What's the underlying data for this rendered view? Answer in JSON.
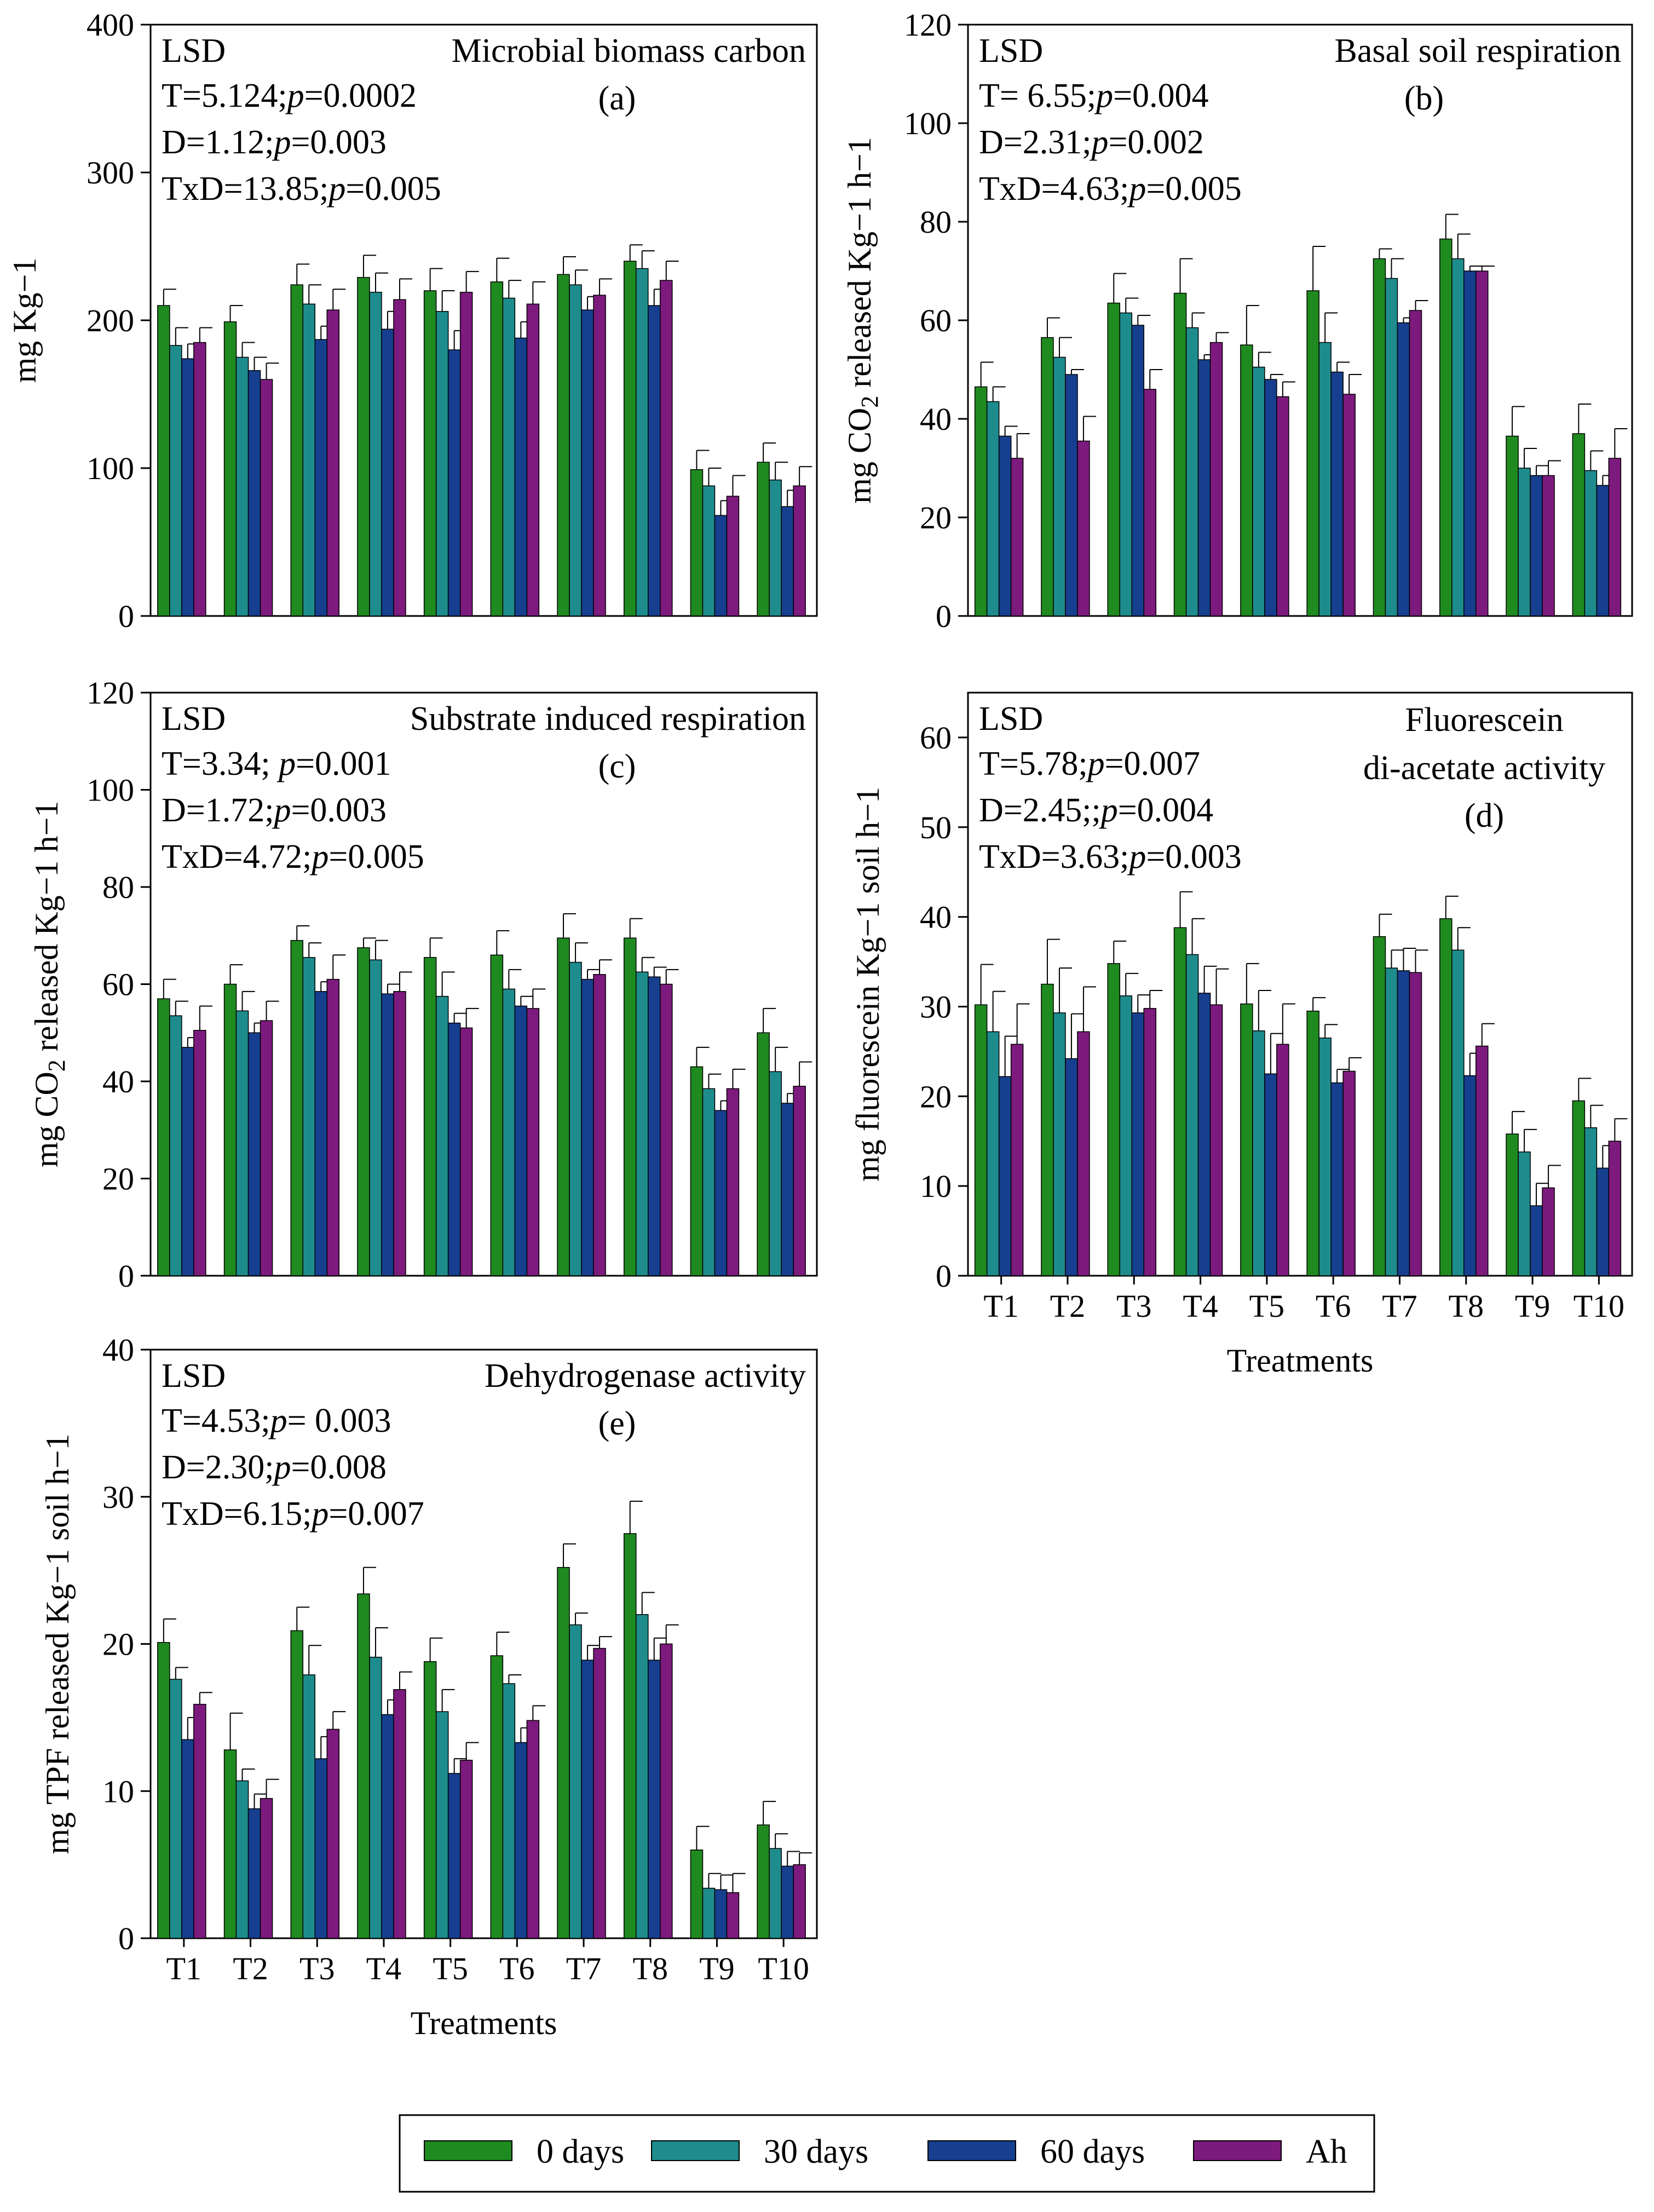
{
  "colors": {
    "0 days": "#1f8a1f",
    "30 days": "#1e8c8c",
    "60 days": "#163f8f",
    "Ah": "#7d1a7d"
  },
  "legend": {
    "items": [
      "0 days",
      "30 days",
      "60 days",
      "Ah"
    ]
  },
  "chart_data": [
    {
      "id": "a",
      "type": "bar",
      "panel_label": "(a)",
      "title": "Microbial biomass carbon",
      "ylabel": "mg Kg−1",
      "ylabel_parts": [
        "mg Kg−1"
      ],
      "xlabel": "",
      "ylim": [
        0,
        400
      ],
      "yticks": [
        0,
        100,
        200,
        300,
        400
      ],
      "show_xticklabels": false,
      "categories": [
        "T1",
        "T2",
        "T3",
        "T4",
        "T5",
        "T6",
        "T7",
        "T8",
        "T9",
        "T10"
      ],
      "stats": {
        "head": "LSD",
        "lines": [
          {
            "pre": "T=5.124;",
            "pval": "=0.0002"
          },
          {
            "pre": "D=1.12;",
            "pval": "=0.003"
          },
          {
            "pre": "TxD=13.85;",
            "pval": "=0.005"
          }
        ]
      },
      "series": [
        {
          "name": "0 days",
          "values": [
            210,
            199,
            224,
            229,
            220,
            226,
            231,
            240,
            99,
            104
          ],
          "errors": [
            11,
            11,
            14,
            15,
            15,
            16,
            12,
            11,
            13,
            13
          ]
        },
        {
          "name": "30 days",
          "values": [
            183,
            175,
            211,
            219,
            206,
            215,
            224,
            235,
            88,
            92
          ],
          "errors": [
            12,
            10,
            13,
            13,
            14,
            12,
            10,
            12,
            12,
            12
          ]
        },
        {
          "name": "60 days",
          "values": [
            174,
            166,
            187,
            194,
            180,
            188,
            207,
            210,
            68,
            74
          ],
          "errors": [
            10,
            9,
            9,
            12,
            13,
            11,
            9,
            11,
            10,
            11
          ]
        },
        {
          "name": "Ah",
          "values": [
            185,
            160,
            207,
            214,
            219,
            211,
            217,
            227,
            81,
            88
          ],
          "errors": [
            10,
            11,
            14,
            14,
            14,
            15,
            11,
            13,
            14,
            13
          ]
        }
      ]
    },
    {
      "id": "b",
      "type": "bar",
      "panel_label": "(b)",
      "title": "Basal soil respiration",
      "ylabel": "mg CO2 released Kg−1 h−1",
      "ylabel_parts": [
        "mg CO",
        "2",
        " released Kg−1 h−1"
      ],
      "xlabel": "",
      "ylim": [
        0,
        120
      ],
      "yticks": [
        0,
        20,
        40,
        60,
        80,
        100,
        120
      ],
      "show_xticklabels": false,
      "categories": [
        "T1",
        "T2",
        "T3",
        "T4",
        "T5",
        "T6",
        "T7",
        "T8",
        "T9",
        "T10"
      ],
      "stats": {
        "head": "LSD",
        "lines": [
          {
            "pre": "T= 6.55;",
            "pval": "=0.004"
          },
          {
            "pre": "D=2.31;",
            "pval": "=0.002"
          },
          {
            "pre": "TxD=4.63;",
            "pval": "=0.005"
          }
        ]
      },
      "series": [
        {
          "name": "0 days",
          "values": [
            46.5,
            56.5,
            63.5,
            65.5,
            55,
            66,
            72.5,
            76.5,
            36.5,
            37
          ],
          "errors": [
            5,
            4,
            6,
            7,
            8,
            9,
            2,
            5,
            6,
            6
          ]
        },
        {
          "name": "30 days",
          "values": [
            43.5,
            52.5,
            61.5,
            58.5,
            50.5,
            55.5,
            68.5,
            72.5,
            30,
            29.5
          ],
          "errors": [
            3,
            4,
            3,
            3,
            3,
            6,
            4,
            5,
            4,
            4
          ]
        },
        {
          "name": "60 days",
          "values": [
            36.5,
            49,
            59,
            52,
            48,
            49.5,
            59.5,
            70,
            28.5,
            26.5
          ],
          "errors": [
            2,
            1,
            2,
            1,
            1,
            2,
            1,
            1,
            2,
            2
          ]
        },
        {
          "name": "Ah",
          "values": [
            32,
            35.5,
            46,
            55.5,
            44.5,
            45,
            62,
            70,
            28.5,
            32
          ],
          "errors": [
            5,
            5,
            4,
            2,
            3,
            4,
            2,
            1,
            3,
            6
          ]
        }
      ]
    },
    {
      "id": "c",
      "type": "bar",
      "panel_label": "(c)",
      "title": "Substrate induced respiration",
      "ylabel": "mg CO2 released Kg−1 h−1",
      "ylabel_parts": [
        "mg CO",
        "2",
        " released Kg−1 h−1"
      ],
      "xlabel": "",
      "ylim": [
        0,
        120
      ],
      "yticks": [
        0,
        20,
        40,
        60,
        80,
        100,
        120
      ],
      "show_xticklabels": false,
      "categories": [
        "T1",
        "T2",
        "T3",
        "T4",
        "T5",
        "T6",
        "T7",
        "T8",
        "T9",
        "T10"
      ],
      "stats": {
        "head": "LSD",
        "lines": [
          {
            "pre": "T=3.34; ",
            "pval": "=0.001"
          },
          {
            "pre": "D=1.72;",
            "pval": "=0.003"
          },
          {
            "pre": "TxD=4.72;",
            "pval": "=0.005"
          }
        ]
      },
      "series": [
        {
          "name": "0 days",
          "values": [
            57,
            60,
            69,
            67.5,
            65.5,
            66,
            69.5,
            69.5,
            43,
            50
          ],
          "errors": [
            4,
            4,
            3,
            2,
            4,
            5,
            5,
            4,
            4,
            5
          ]
        },
        {
          "name": "30 days",
          "values": [
            53.5,
            54.5,
            65.5,
            65,
            57.5,
            59,
            64.5,
            62.5,
            38.5,
            42
          ],
          "errors": [
            3,
            4,
            3,
            4,
            5,
            4,
            4,
            3,
            3,
            5
          ]
        },
        {
          "name": "60 days",
          "values": [
            47,
            50,
            58.5,
            58,
            52,
            55.5,
            61,
            61.5,
            34,
            35.5
          ],
          "errors": [
            2,
            2,
            2,
            2,
            2,
            2,
            2,
            2,
            2,
            2
          ]
        },
        {
          "name": "Ah",
          "values": [
            50.5,
            52.5,
            61,
            58.5,
            51,
            55,
            62,
            60,
            38.5,
            39
          ],
          "errors": [
            5,
            4,
            5,
            4,
            4,
            4,
            3,
            3,
            4,
            5
          ]
        }
      ]
    },
    {
      "id": "d",
      "type": "bar",
      "panel_label": "(d)",
      "title": "Fluorescein di-acetate activity",
      "title_lines": [
        "Fluorescein",
        "di-acetate activity"
      ],
      "ylabel": "mg fluorescein Kg−1 soil h−1",
      "ylabel_parts": [
        "mg fluorescein Kg−1 soil h−1"
      ],
      "xlabel": "Treatments",
      "ylim": [
        0,
        65
      ],
      "yticks": [
        0,
        10,
        20,
        30,
        40,
        50,
        60
      ],
      "show_xticklabels": true,
      "categories": [
        "T1",
        "T2",
        "T3",
        "T4",
        "T5",
        "T6",
        "T7",
        "T8",
        "T9",
        "T10"
      ],
      "stats": {
        "head": "LSD",
        "lines": [
          {
            "pre": "T=5.78;",
            "pval": "=0.007"
          },
          {
            "pre": "D=2.45;;",
            "pval": "=0.004"
          },
          {
            "pre": "TxD=3.63;",
            "pval": "=0.003"
          }
        ]
      },
      "series": [
        {
          "name": "0 days",
          "values": [
            30.2,
            32.5,
            34.8,
            38.8,
            30.3,
            29.5,
            37.8,
            39.8,
            15.8,
            19.5
          ],
          "errors": [
            4.5,
            5,
            2.5,
            4,
            4.5,
            1.5,
            2.5,
            2.5,
            2.5,
            2.5
          ]
        },
        {
          "name": "30 days",
          "values": [
            27.2,
            29.3,
            31.2,
            35.8,
            27.3,
            26.5,
            34.3,
            36.3,
            13.8,
            16.5
          ],
          "errors": [
            4.5,
            5,
            2.5,
            4,
            4.5,
            1.5,
            2,
            2.5,
            2.5,
            2.5
          ]
        },
        {
          "name": "60 days",
          "values": [
            22.2,
            24.2,
            29.3,
            31.5,
            22.5,
            21.5,
            34,
            22.3,
            7.8,
            12
          ],
          "errors": [
            4.5,
            5,
            2,
            3,
            4.5,
            1.5,
            2.5,
            2.5,
            2.5,
            2.5
          ]
        },
        {
          "name": "Ah",
          "values": [
            25.8,
            27.2,
            29.8,
            30.2,
            25.8,
            22.8,
            33.8,
            25.6,
            9.8,
            15
          ],
          "errors": [
            4.5,
            5,
            2,
            4,
            4.5,
            1.5,
            2.5,
            2.5,
            2.5,
            2.5
          ]
        }
      ]
    },
    {
      "id": "e",
      "type": "bar",
      "panel_label": "(e)",
      "title": "Dehydrogenase activity",
      "ylabel": "mg TPF released Kg−1 soil h−1",
      "ylabel_parts": [
        "mg TPF released Kg−1 soil h−1"
      ],
      "xlabel": "Treatments",
      "ylim": [
        0,
        40
      ],
      "yticks": [
        0,
        10,
        20,
        30,
        40
      ],
      "show_xticklabels": true,
      "categories": [
        "T1",
        "T2",
        "T3",
        "T4",
        "T5",
        "T6",
        "T7",
        "T8",
        "T9",
        "T10"
      ],
      "stats": {
        "head": "LSD",
        "lines": [
          {
            "pre": "T=4.53;",
            "pval": "= 0.003"
          },
          {
            "pre": "D=2.30;",
            "pval": "=0.008"
          },
          {
            "pre": "TxD=6.15;",
            "pval": "=0.007"
          }
        ]
      },
      "series": [
        {
          "name": "0 days",
          "values": [
            20.1,
            12.8,
            20.9,
            23.4,
            18.8,
            19.2,
            25.2,
            27.5,
            6,
            7.7
          ],
          "errors": [
            1.6,
            2.5,
            1.6,
            1.8,
            1.6,
            1.6,
            1.6,
            2.2,
            1.6,
            1.6
          ]
        },
        {
          "name": "30 days",
          "values": [
            17.6,
            10.7,
            17.9,
            19.1,
            15.4,
            17.3,
            21.3,
            22,
            3.4,
            6.1
          ],
          "errors": [
            0.8,
            0.8,
            2,
            2,
            1.5,
            0.6,
            0.8,
            1.5,
            1,
            1
          ]
        },
        {
          "name": "60 days",
          "values": [
            13.5,
            8.8,
            12.2,
            15.2,
            11.2,
            13.3,
            18.9,
            18.9,
            3.3,
            4.9
          ],
          "errors": [
            1.5,
            1,
            1.5,
            1,
            1,
            1,
            1,
            1.5,
            1,
            1
          ]
        },
        {
          "name": "Ah",
          "values": [
            15.9,
            9.5,
            14.2,
            16.9,
            12.1,
            14.8,
            19.7,
            20,
            3.1,
            5
          ],
          "errors": [
            0.8,
            1.3,
            1.2,
            1.2,
            1.2,
            1,
            0.8,
            1.3,
            1.3,
            0.8
          ]
        }
      ]
    }
  ]
}
